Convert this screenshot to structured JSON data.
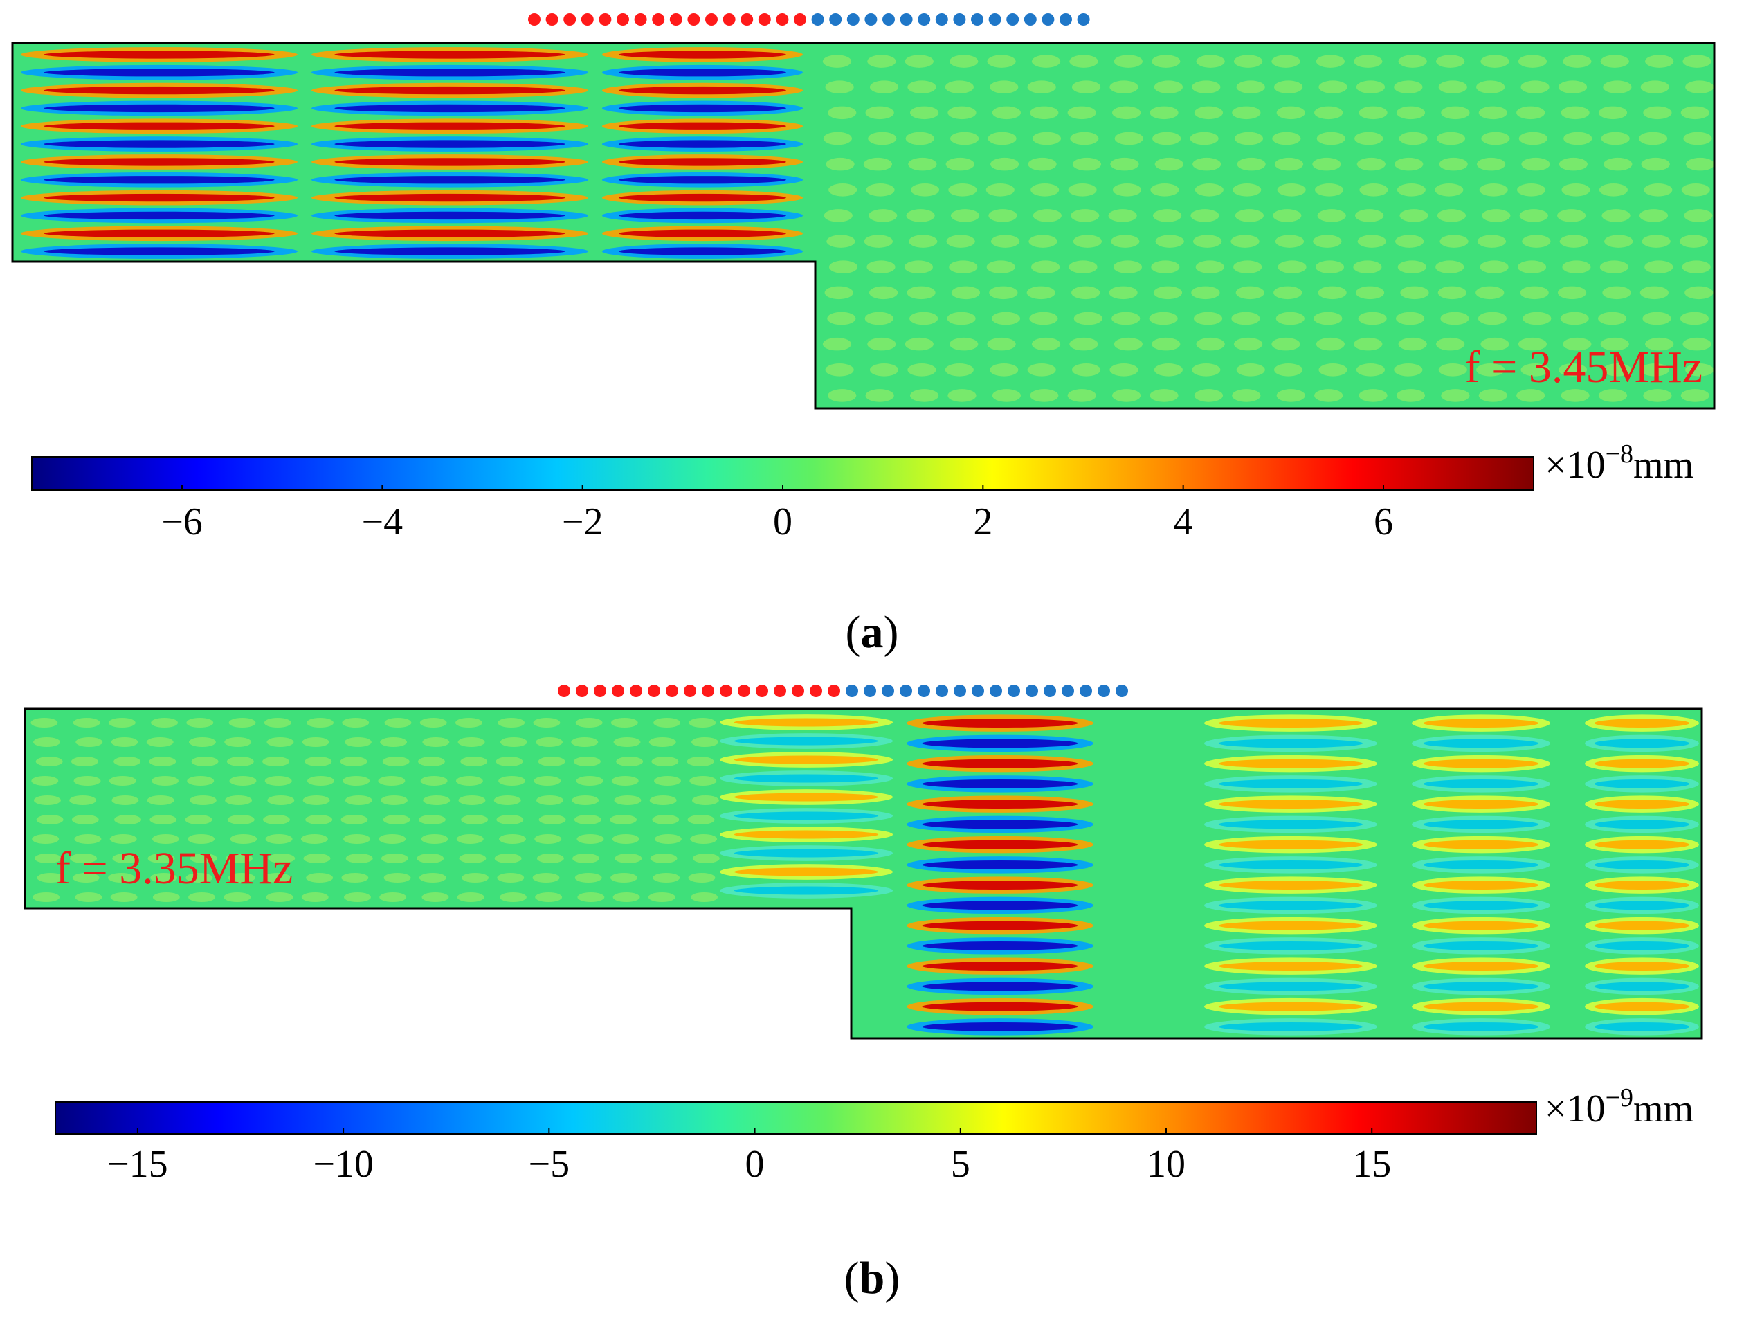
{
  "colors": {
    "source_red": "#ff1a1a",
    "source_blue": "#1f77c8",
    "freq_label": "#ee1c1c",
    "outline": "#000000",
    "field_base": "#2fe07a",
    "jet": [
      "#00007f",
      "#0000ff",
      "#0080ff",
      "#00ffff",
      "#40f07a",
      "#80ff80",
      "#ffff00",
      "#ff8000",
      "#ff0000",
      "#7f0000"
    ]
  },
  "panels": [
    {
      "id": "a",
      "label": "a",
      "frequency_label": "f = 3.45MHz",
      "red_source_count": 16,
      "blue_source_count": 16,
      "colorbar": {
        "unit_prefix": "×10",
        "exponent": "−8",
        "unit": "mm",
        "ticks": [
          "−6",
          "−4",
          "−2",
          "0",
          "2",
          "4",
          "6"
        ],
        "range": [
          -7.5,
          7.5
        ]
      }
    },
    {
      "id": "b",
      "label": "b",
      "frequency_label": "f = 3.35MHz",
      "red_source_count": 16,
      "blue_source_count": 16,
      "colorbar": {
        "unit_prefix": "×10",
        "exponent": "−9",
        "unit": "mm",
        "ticks": [
          "−15",
          "−10",
          "−5",
          "0",
          "5",
          "10",
          "15"
        ],
        "range": [
          -17,
          19
        ]
      }
    }
  ]
}
